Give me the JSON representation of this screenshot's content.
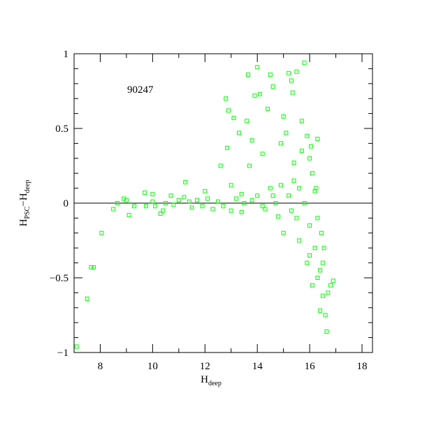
{
  "chart_data": {
    "type": "scatter",
    "annotation": "90247",
    "xlabel": [
      "H",
      "deep"
    ],
    "ylabel": [
      "H",
      "PSC",
      "−H",
      "deep"
    ],
    "color": "#00ff00",
    "xlim": [
      7,
      18.4
    ],
    "ylim": [
      -1,
      1
    ],
    "xticks": [
      8,
      10,
      12,
      14,
      16,
      18
    ],
    "xminorticks": [
      7,
      9,
      11,
      13,
      15,
      17
    ],
    "yticks": [
      {
        "value": -1,
        "label": "−1"
      },
      {
        "value": -0.5,
        "label": "−0.5"
      },
      0,
      0.5,
      1
    ],
    "yminorticks": [
      -0.9,
      -0.8,
      -0.7,
      -0.6,
      -0.4,
      -0.3,
      -0.2,
      -0.1,
      0.1,
      0.2,
      0.3,
      0.4,
      0.6,
      0.7,
      0.8,
      0.9
    ],
    "hline": 0,
    "x": [
      7.1,
      7.5,
      7.65,
      7.75,
      8.05,
      8.5,
      8.65,
      8.9,
      9.0,
      9.1,
      9.3,
      9.7,
      9.75,
      10.0,
      10.0,
      10.1,
      10.3,
      10.4,
      10.5,
      10.7,
      10.8,
      11.0,
      11.2,
      11.25,
      11.4,
      11.5,
      11.7,
      11.9,
      12.0,
      12.1,
      12.3,
      12.5,
      12.6,
      12.7,
      12.8,
      12.85,
      12.9,
      13.0,
      13.0,
      13.1,
      13.2,
      13.3,
      13.4,
      13.5,
      13.6,
      13.65,
      13.7,
      13.8,
      13.9,
      14.0,
      14.0,
      14.1,
      14.2,
      14.3,
      14.4,
      14.5,
      14.6,
      14.7,
      14.8,
      14.9,
      15.0,
      15.0,
      15.1,
      15.2,
      15.3,
      15.35,
      15.4,
      15.5,
      15.6,
      15.7,
      15.8,
      15.9,
      16.0,
      16.0,
      16.1,
      16.2,
      16.3,
      16.3,
      16.4,
      16.5,
      16.6,
      16.65,
      16.7,
      16.8,
      16.9,
      16.5,
      16.0,
      15.5,
      15.2,
      14.9,
      15.8,
      16.2,
      16.3,
      15.6,
      15.9,
      16.1,
      16.4,
      15.4,
      14.6,
      14.2,
      13.8,
      13.4,
      15.7,
      16.05,
      15.3,
      14.5,
      16.25,
      16.45,
      16.55
    ],
    "y": [
      -0.96,
      -0.64,
      -0.43,
      -0.43,
      -0.2,
      -0.04,
      0.0,
      0.03,
      0.02,
      -0.08,
      -0.02,
      0.07,
      -0.02,
      0.06,
      0.01,
      -0.02,
      -0.07,
      -0.05,
      0.0,
      0.05,
      -0.01,
      0.02,
      0.04,
      0.14,
      0.01,
      -0.03,
      0.02,
      -0.02,
      0.08,
      0.03,
      -0.04,
      0.01,
      0.25,
      -0.02,
      0.7,
      0.37,
      0.62,
      0.12,
      -0.05,
      0.57,
      0.03,
      0.47,
      -0.06,
      0.0,
      0.55,
      0.86,
      0.25,
      0.42,
      0.72,
      0.91,
      0.05,
      0.73,
      0.33,
      -0.04,
      0.63,
      0.86,
      0.78,
      0.0,
      -0.09,
      0.4,
      0.58,
      -0.2,
      0.47,
      0.87,
      0.82,
      0.74,
      0.27,
      0.88,
      0.1,
      0.55,
      0.94,
      0.45,
      0.3,
      -0.35,
      0.2,
      -0.3,
      0.43,
      -0.5,
      -0.45,
      -0.62,
      -0.75,
      -0.86,
      -0.6,
      -0.55,
      -0.52,
      -0.4,
      -0.15,
      -0.1,
      0.05,
      0.12,
      0.0,
      0.08,
      -0.1,
      -0.25,
      -0.4,
      -0.55,
      -0.72,
      0.15,
      0.05,
      -0.02,
      0.02,
      0.06,
      0.35,
      0.38,
      -0.05,
      0.1,
      0.1,
      -0.2,
      -0.3
    ]
  }
}
